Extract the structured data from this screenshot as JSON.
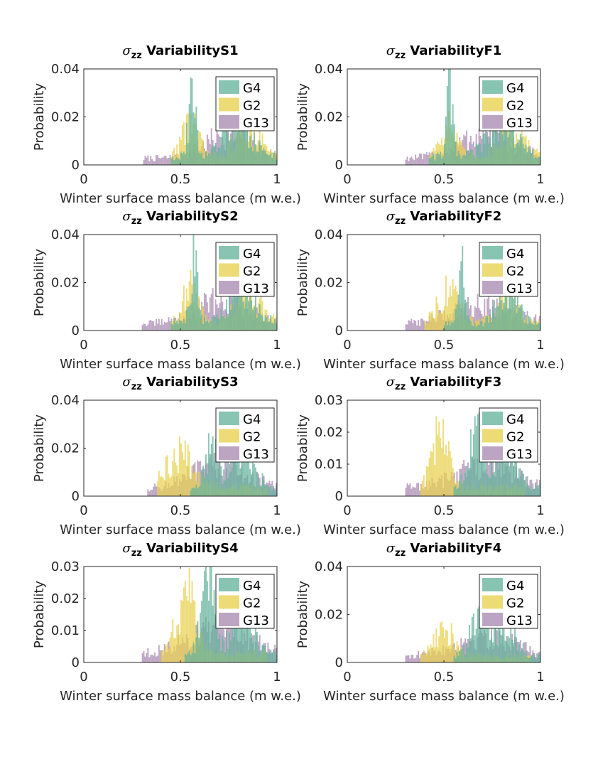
{
  "figure": {
    "ylabel": "Probability",
    "xlabel": "Winter surface mass balance (m w.e.)"
  },
  "colors": {
    "G4": "#66b39c",
    "G2": "#e8d250",
    "G13": "#a98bb2"
  },
  "chart_data": [
    {
      "type": "bar",
      "title_symbol": "σ",
      "title_subscript": "zz",
      "title": "VariabilityS1",
      "xlim": [
        0,
        1
      ],
      "xticks": [
        "0",
        "0.5",
        "1"
      ],
      "ylim": [
        0,
        0.04
      ],
      "yticks": [
        "0",
        "0.02",
        "0.04"
      ],
      "legend": "top-right",
      "series": [
        {
          "name": "G4",
          "peaks": [
            [
              0.56,
              0.03,
              0.018
            ],
            [
              0.8,
              0.015,
              0.07
            ]
          ],
          "range": [
            0.45,
            1.0
          ],
          "base": 0.004
        },
        {
          "name": "G2",
          "peaks": [
            [
              0.55,
              0.016,
              0.04
            ],
            [
              0.85,
              0.014,
              0.06
            ]
          ],
          "range": [
            0.45,
            1.0
          ],
          "base": 0.004
        },
        {
          "name": "G13",
          "peaks": [
            [
              0.75,
              0.011,
              0.12
            ]
          ],
          "range": [
            0.31,
            1.0
          ],
          "base": 0.003
        }
      ]
    },
    {
      "type": "bar",
      "title_symbol": "σ",
      "title_subscript": "zz",
      "title": "VariabilityF1",
      "xlim": [
        0,
        1
      ],
      "xticks": [
        "0",
        "0.5",
        "1"
      ],
      "ylim": [
        0,
        0.04
      ],
      "yticks": [
        "0",
        "0.02",
        "0.04"
      ],
      "legend": "top-right",
      "series": [
        {
          "name": "G4",
          "peaks": [
            [
              0.53,
              0.031,
              0.015
            ],
            [
              0.8,
              0.016,
              0.07
            ]
          ],
          "range": [
            0.42,
            1.0
          ],
          "base": 0.004
        },
        {
          "name": "G2",
          "peaks": [
            [
              0.52,
              0.015,
              0.04
            ],
            [
              0.85,
              0.013,
              0.06
            ]
          ],
          "range": [
            0.42,
            1.0
          ],
          "base": 0.004
        },
        {
          "name": "G13",
          "peaks": [
            [
              0.72,
              0.011,
              0.14
            ]
          ],
          "range": [
            0.3,
            1.0
          ],
          "base": 0.003
        }
      ]
    },
    {
      "type": "bar",
      "title_symbol": "σ",
      "title_subscript": "zz",
      "title": "VariabilityS2",
      "xlim": [
        0,
        1
      ],
      "xticks": [
        "0",
        "0.5",
        "1"
      ],
      "ylim": [
        0,
        0.04
      ],
      "yticks": [
        "0",
        "0.02",
        "0.04"
      ],
      "legend": "top-right",
      "series": [
        {
          "name": "G4",
          "peaks": [
            [
              0.57,
              0.028,
              0.018
            ],
            [
              0.82,
              0.016,
              0.06
            ]
          ],
          "range": [
            0.45,
            1.0
          ],
          "base": 0.004
        },
        {
          "name": "G2",
          "peaks": [
            [
              0.55,
              0.015,
              0.04
            ],
            [
              0.85,
              0.013,
              0.06
            ]
          ],
          "range": [
            0.45,
            1.0
          ],
          "base": 0.004
        },
        {
          "name": "G13",
          "peaks": [
            [
              0.72,
              0.011,
              0.14
            ]
          ],
          "range": [
            0.3,
            1.0
          ],
          "base": 0.003
        }
      ]
    },
    {
      "type": "bar",
      "title_symbol": "σ",
      "title_subscript": "zz",
      "title": "VariabilityF2",
      "xlim": [
        0,
        1
      ],
      "xticks": [
        "0",
        "0.5",
        "1"
      ],
      "ylim": [
        0,
        0.04
      ],
      "yticks": [
        "0",
        "0.02",
        "0.04"
      ],
      "legend": "top-right",
      "series": [
        {
          "name": "G4",
          "peaks": [
            [
              0.59,
              0.038,
              0.015
            ],
            [
              0.83,
              0.017,
              0.05
            ]
          ],
          "range": [
            0.5,
            1.0
          ],
          "base": 0.003
        },
        {
          "name": "G2",
          "peaks": [
            [
              0.52,
              0.015,
              0.05
            ],
            [
              0.83,
              0.012,
              0.05
            ]
          ],
          "range": [
            0.4,
            1.0
          ],
          "base": 0.004
        },
        {
          "name": "G13",
          "peaks": [
            [
              0.7,
              0.009,
              0.16
            ]
          ],
          "range": [
            0.3,
            1.0
          ],
          "base": 0.003
        }
      ]
    },
    {
      "type": "bar",
      "title_symbol": "σ",
      "title_subscript": "zz",
      "title": "VariabilityS3",
      "xlim": [
        0,
        1
      ],
      "xticks": [
        "0",
        "0.5",
        "1"
      ],
      "ylim": [
        0,
        0.04
      ],
      "yticks": [
        "0",
        "0.02",
        "0.04"
      ],
      "legend": "top-right",
      "series": [
        {
          "name": "G4",
          "peaks": [
            [
              0.66,
              0.02,
              0.03
            ],
            [
              0.82,
              0.02,
              0.06
            ]
          ],
          "range": [
            0.55,
            1.0
          ],
          "base": 0.003
        },
        {
          "name": "G2",
          "peaks": [
            [
              0.5,
              0.015,
              0.07
            ]
          ],
          "range": [
            0.38,
            0.95
          ],
          "base": 0.004
        },
        {
          "name": "G13",
          "peaks": [
            [
              0.7,
              0.011,
              0.15
            ]
          ],
          "range": [
            0.33,
            1.0
          ],
          "base": 0.003
        }
      ]
    },
    {
      "type": "bar",
      "title_symbol": "σ",
      "title_subscript": "zz",
      "title": "VariabilityF3",
      "xlim": [
        0,
        1
      ],
      "xticks": [
        "0",
        "0.5",
        "1"
      ],
      "ylim": [
        0,
        0.03
      ],
      "yticks": [
        "0",
        "0.01",
        "0.02",
        "0.03"
      ],
      "legend": "top-right",
      "series": [
        {
          "name": "G4",
          "peaks": [
            [
              0.67,
              0.02,
              0.04
            ],
            [
              0.82,
              0.018,
              0.05
            ]
          ],
          "range": [
            0.55,
            1.0
          ],
          "base": 0.003
        },
        {
          "name": "G2",
          "peaks": [
            [
              0.48,
              0.019,
              0.04
            ]
          ],
          "range": [
            0.38,
            0.92
          ],
          "base": 0.003
        },
        {
          "name": "G13",
          "peaks": [
            [
              0.72,
              0.008,
              0.15
            ]
          ],
          "range": [
            0.3,
            1.0
          ],
          "base": 0.003
        }
      ]
    },
    {
      "type": "bar",
      "title_symbol": "σ",
      "title_subscript": "zz",
      "title": "VariabilityS4",
      "xlim": [
        0,
        1
      ],
      "xticks": [
        "0",
        "0.5",
        "1"
      ],
      "ylim": [
        0,
        0.03
      ],
      "yticks": [
        "0",
        "0.01",
        "0.02",
        "0.03"
      ],
      "legend": "top-right",
      "series": [
        {
          "name": "G4",
          "peaks": [
            [
              0.64,
              0.028,
              0.03
            ],
            [
              0.82,
              0.018,
              0.05
            ]
          ],
          "range": [
            0.52,
            1.0
          ],
          "base": 0.003
        },
        {
          "name": "G2",
          "peaks": [
            [
              0.53,
              0.02,
              0.05
            ]
          ],
          "range": [
            0.4,
            0.95
          ],
          "base": 0.003
        },
        {
          "name": "G13",
          "peaks": [
            [
              0.7,
              0.009,
              0.15
            ]
          ],
          "range": [
            0.3,
            1.0
          ],
          "base": 0.003
        }
      ]
    },
    {
      "type": "bar",
      "title_symbol": "σ",
      "title_subscript": "zz",
      "title": "VariabilityF4",
      "xlim": [
        0,
        1
      ],
      "xticks": [
        "0",
        "0.5",
        "1"
      ],
      "ylim": [
        0,
        0.04
      ],
      "yticks": [
        "0",
        "0.02",
        "0.04"
      ],
      "legend": "top-right",
      "series": [
        {
          "name": "G4",
          "peaks": [
            [
              0.68,
              0.018,
              0.04
            ],
            [
              0.82,
              0.016,
              0.05
            ]
          ],
          "range": [
            0.55,
            1.0
          ],
          "base": 0.003
        },
        {
          "name": "G2",
          "peaks": [
            [
              0.5,
              0.013,
              0.05
            ]
          ],
          "range": [
            0.38,
            0.95
          ],
          "base": 0.003
        },
        {
          "name": "G13",
          "peaks": [
            [
              0.72,
              0.009,
              0.15
            ]
          ],
          "range": [
            0.3,
            1.0
          ],
          "base": 0.003
        }
      ]
    }
  ]
}
